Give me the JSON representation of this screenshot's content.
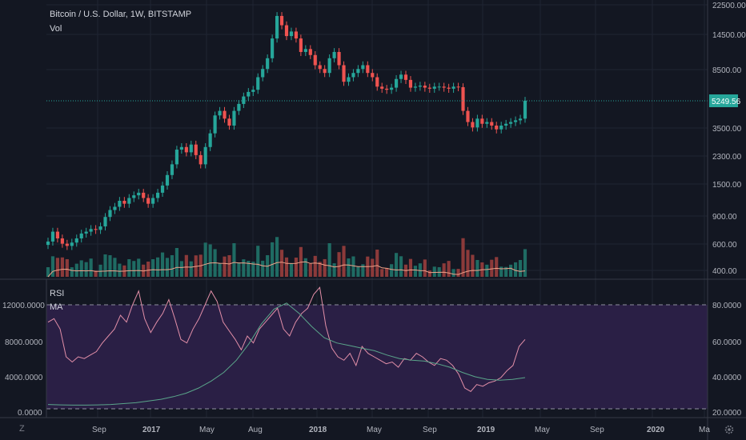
{
  "chart_header": {
    "title": "Bitcoin / U.S. Dollar, 1W, BITSTAMP",
    "volume_label": "Vol"
  },
  "price_axis_labels": [
    "22500.00",
    "14500.00",
    "8500.00",
    "5249.56",
    "3500.00",
    "2300.00",
    "1500.00",
    "900.00",
    "600.00",
    "400.00"
  ],
  "current_price": "5249.56",
  "rsi_pane": {
    "label": "RSI",
    "ma_label": "MA",
    "left_axis_labels": [
      "12000.0000",
      "8000.0000",
      "4000.0000",
      "0.0000"
    ],
    "right_axis_labels": [
      "80.0000",
      "60.0000",
      "40.0000",
      "20.0000"
    ]
  },
  "time_axis_labels": [
    "Sep",
    "2017",
    "May",
    "Aug",
    "2018",
    "May",
    "Sep",
    "2019",
    "May",
    "Sep",
    "2020",
    "Ma"
  ],
  "icons": {
    "zoom_icon": "Z",
    "settings_icon": "gear-icon"
  },
  "colors": {
    "background": "#131722",
    "up": "#26a69a",
    "down": "#ef5350",
    "rsi_line": "#e28fa8",
    "ma_line": "#5aa58a",
    "price_line": "#26a69a",
    "rsi_band": "#2a1f45"
  },
  "chart_data": {
    "type": "candlestick",
    "title": "Bitcoin / U.S. Dollar, 1W, BITSTAMP",
    "price_scale": "log",
    "y_ticks": [
      400,
      600,
      900,
      1500,
      2300,
      3500,
      5249.56,
      8500,
      14500,
      22500
    ],
    "x_labels": [
      "Sep",
      "2017",
      "May",
      "Aug",
      "2018",
      "May",
      "Sep",
      "2019",
      "May",
      "Sep",
      "2020",
      "Ma"
    ],
    "weekly_close_approx": [
      620,
      720,
      650,
      600,
      580,
      610,
      650,
      700,
      720,
      750,
      740,
      780,
      900,
      1000,
      1050,
      1150,
      1100,
      1200,
      1250,
      1300,
      1200,
      1100,
      1200,
      1300,
      1450,
      1700,
      2000,
      2500,
      2600,
      2400,
      2700,
      2300,
      2000,
      2600,
      3200,
      4200,
      4500,
      4000,
      3600,
      4500,
      5000,
      5600,
      6000,
      6200,
      7500,
      8500,
      10000,
      13500,
      19000,
      16500,
      14000,
      15000,
      13500,
      11000,
      11500,
      10500,
      9000,
      8500,
      8000,
      10000,
      11000,
      9000,
      7000,
      7500,
      8000,
      8500,
      9000,
      8000,
      7500,
      6500,
      6300,
      6200,
      6400,
      7300,
      7800,
      7200,
      6400,
      6500,
      6600,
      6400,
      6300,
      6500,
      6500,
      6400,
      6300,
      6500,
      6450,
      4500,
      3800,
      3500,
      4000,
      3700,
      3800,
      3600,
      3400,
      3600,
      3700,
      3800,
      3900,
      4000,
      5249.56
    ],
    "rsi": {
      "levels": [
        80,
        20
      ],
      "range": [
        20,
        80
      ],
      "values_approx": [
        70,
        72,
        66,
        50,
        47,
        50,
        49,
        51,
        53,
        58,
        62,
        66,
        74,
        70,
        80,
        88,
        72,
        64,
        70,
        75,
        83,
        72,
        60,
        58,
        66,
        72,
        80,
        88,
        82,
        70,
        65,
        60,
        54,
        62,
        58,
        66,
        70,
        74,
        78,
        66,
        62,
        70,
        75,
        78,
        86,
        90,
        68,
        55,
        50,
        48,
        52,
        45,
        56,
        52,
        50,
        48,
        46,
        47,
        44,
        49,
        48,
        52,
        50,
        47,
        45,
        49,
        48,
        45,
        40,
        32,
        30,
        34,
        33,
        35,
        36,
        38,
        42,
        45,
        56,
        60
      ],
      "ma_scale_left": [
        0,
        12000
      ],
      "ma_values_approx": [
        500,
        450,
        420,
        420,
        450,
        500,
        600,
        700,
        900,
        1100,
        1400,
        1800,
        2400,
        3200,
        4200,
        5600,
        7500,
        9800,
        11500,
        12200,
        11000,
        9500,
        8200,
        7600,
        7300,
        7000,
        6700,
        6200,
        5800,
        5600,
        5500,
        5200,
        4800,
        4200,
        3700,
        3400,
        3300,
        3400,
        3600
      ]
    }
  }
}
